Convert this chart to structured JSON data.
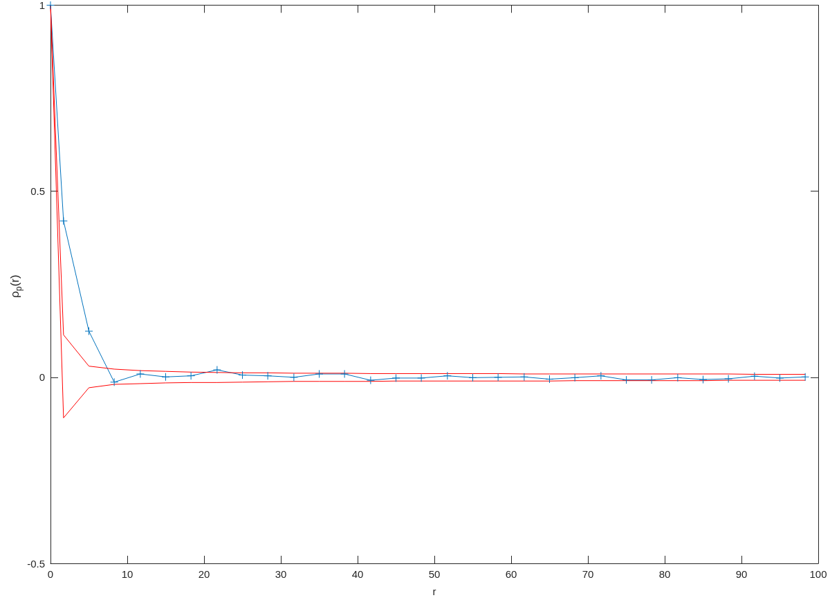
{
  "chart_data": {
    "type": "line",
    "xlabel": "r",
    "ylabel": "ρ$_{p}$(r)",
    "x": [
      0,
      1.7,
      5,
      8.3,
      11.7,
      15,
      18.3,
      21.7,
      25,
      28.3,
      31.7,
      35,
      38.3,
      41.7,
      45,
      48.3,
      51.7,
      55,
      58.3,
      61.7,
      65,
      68.3,
      71.7,
      75,
      78.3,
      81.7,
      85,
      88.3,
      91.7,
      95,
      98.3
    ],
    "series": [
      {
        "color": "#0072bd",
        "marker": "cross",
        "values": [
          1,
          0.42,
          0.124,
          -0.013,
          0.009,
          0.001,
          0.004,
          0.02,
          0.006,
          0.004,
          0,
          0.009,
          0.009,
          -0.008,
          -0.002,
          -0.002,
          0.004,
          -0.001,
          0,
          0.001,
          -0.005,
          -0.001,
          0.004,
          -0.007,
          -0.007,
          -0.001,
          -0.006,
          -0.004,
          0.003,
          -0.002,
          0.001
        ]
      },
      {
        "color": "#ff0000",
        "marker": "none",
        "values": [
          1,
          0.114,
          0.03,
          0.022,
          0.018,
          0.016,
          0.014,
          0.013,
          0.012,
          0.012,
          0.011,
          0.011,
          0.011,
          0.01,
          0.01,
          0.01,
          0.01,
          0.01,
          0.01,
          0.009,
          0.009,
          0.009,
          0.009,
          0.009,
          0.009,
          0.009,
          0.009,
          0.009,
          0.008,
          0.008,
          0.008
        ]
      },
      {
        "color": "#ff0000",
        "marker": "none",
        "values": [
          1,
          -0.109,
          -0.028,
          -0.019,
          -0.017,
          -0.015,
          -0.014,
          -0.014,
          -0.013,
          -0.012,
          -0.011,
          -0.011,
          -0.011,
          -0.011,
          -0.01,
          -0.01,
          -0.01,
          -0.01,
          -0.01,
          -0.01,
          -0.01,
          -0.009,
          -0.009,
          -0.009,
          -0.009,
          -0.009,
          -0.009,
          -0.008,
          -0.008,
          -0.008,
          -0.008
        ]
      }
    ],
    "xlim": [
      0,
      100
    ],
    "xticks": [
      0,
      10,
      20,
      30,
      40,
      50,
      60,
      70,
      80,
      90,
      100
    ],
    "ylim": [
      -0.5,
      1
    ],
    "yticks": [
      -0.5,
      0,
      0.5,
      1
    ],
    "grid": false
  }
}
